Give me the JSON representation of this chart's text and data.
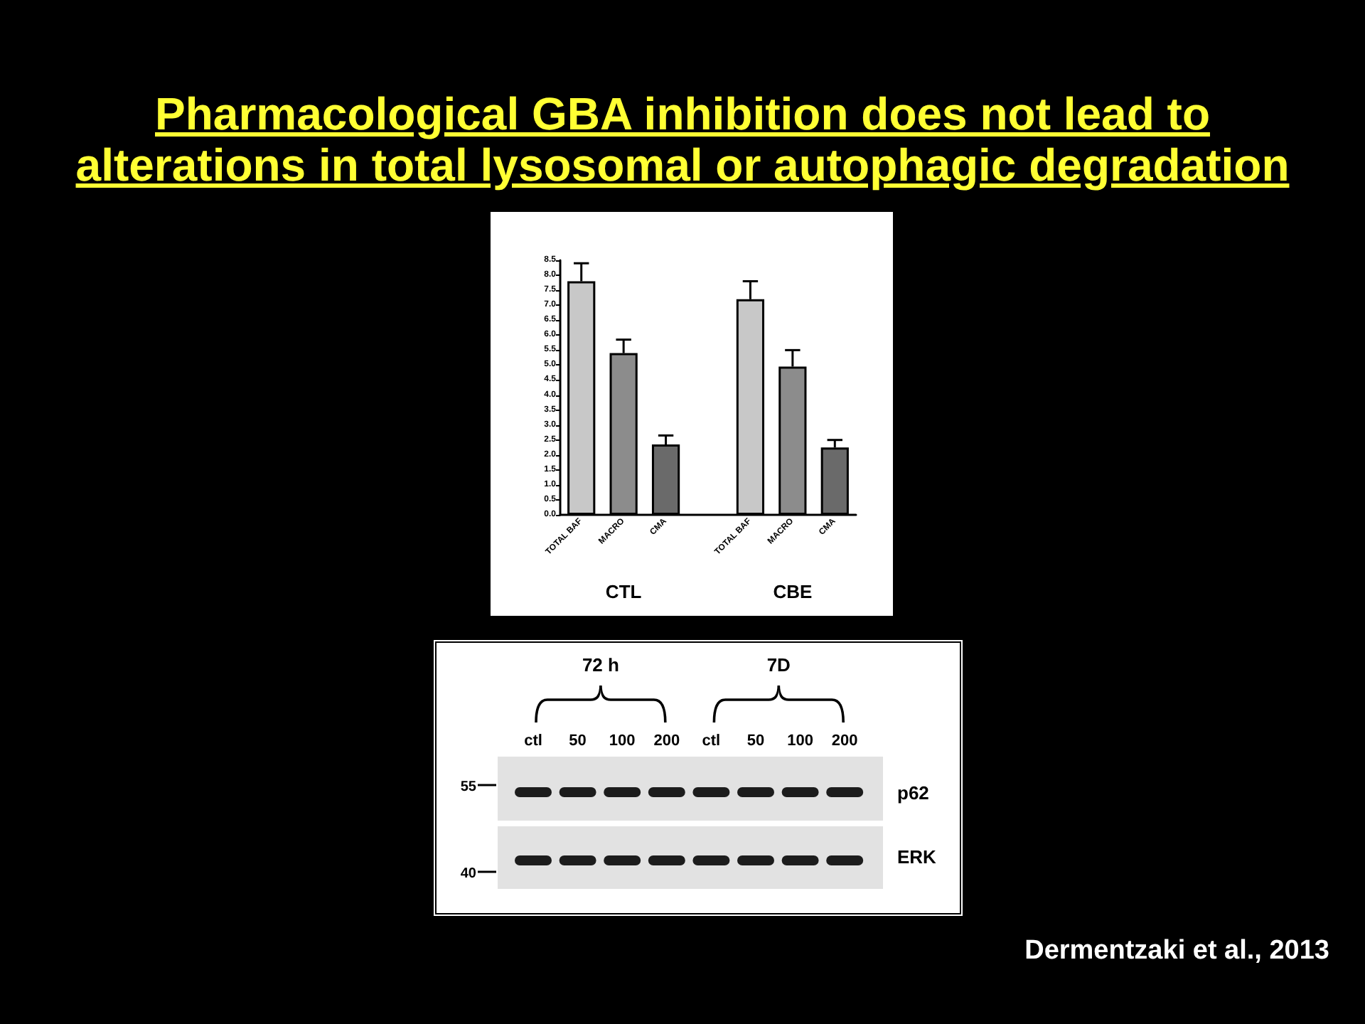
{
  "chart_data": [
    {
      "type": "bar",
      "title": "Pharmacological GBA inhibition does not lead to alterations in total lysosomal or autophagic degradation",
      "categories": [
        "TOTAL BAF",
        "MACRO",
        "CMA",
        null,
        "TOTAL BAF",
        "MACRO",
        "CMA"
      ],
      "values": [
        7.8,
        5.4,
        2.35,
        null,
        7.2,
        4.95,
        2.25
      ],
      "colors": [
        "#c8c8c8",
        "#8c8c8c",
        "#6a6a6a",
        null,
        "#c8c8c8",
        "#8c8c8c",
        "#6a6a6a"
      ],
      "errors": [
        [
          7.8,
          8.4
        ],
        [
          5.4,
          5.85
        ],
        [
          2.35,
          2.65
        ],
        null,
        [
          7.2,
          7.8
        ],
        [
          4.95,
          5.5
        ],
        [
          2.25,
          2.5
        ]
      ],
      "ylim": [
        0,
        8.5
      ],
      "yticks": [
        {
          "value": 0,
          "label": "0.0"
        },
        0.5,
        {
          "value": 1,
          "label": "1.0"
        },
        1.5,
        {
          "value": 2,
          "label": "2.0"
        },
        2.5,
        {
          "value": 3,
          "label": "3.0"
        },
        3.5,
        {
          "value": 4,
          "label": "4.0"
        },
        4.5,
        {
          "value": 5,
          "label": "5.0"
        },
        5.5,
        {
          "value": 6,
          "label": "6.0"
        },
        6.5,
        {
          "value": 7,
          "label": "7.0"
        },
        7.5,
        {
          "value": 8,
          "label": "8.0"
        },
        8.5
      ],
      "annotations": [
        "CTL",
        "CBE",
        "Dermentzaki et al., 2013"
      ]
    },
    {
      "type": "other",
      "categories": [
        "ctl",
        "50",
        "100",
        "200",
        "ctl",
        "50",
        "100",
        "200"
      ],
      "annotations": [
        "72 h",
        "7D",
        "p62",
        "ERK",
        "55",
        "40"
      ]
    }
  ]
}
